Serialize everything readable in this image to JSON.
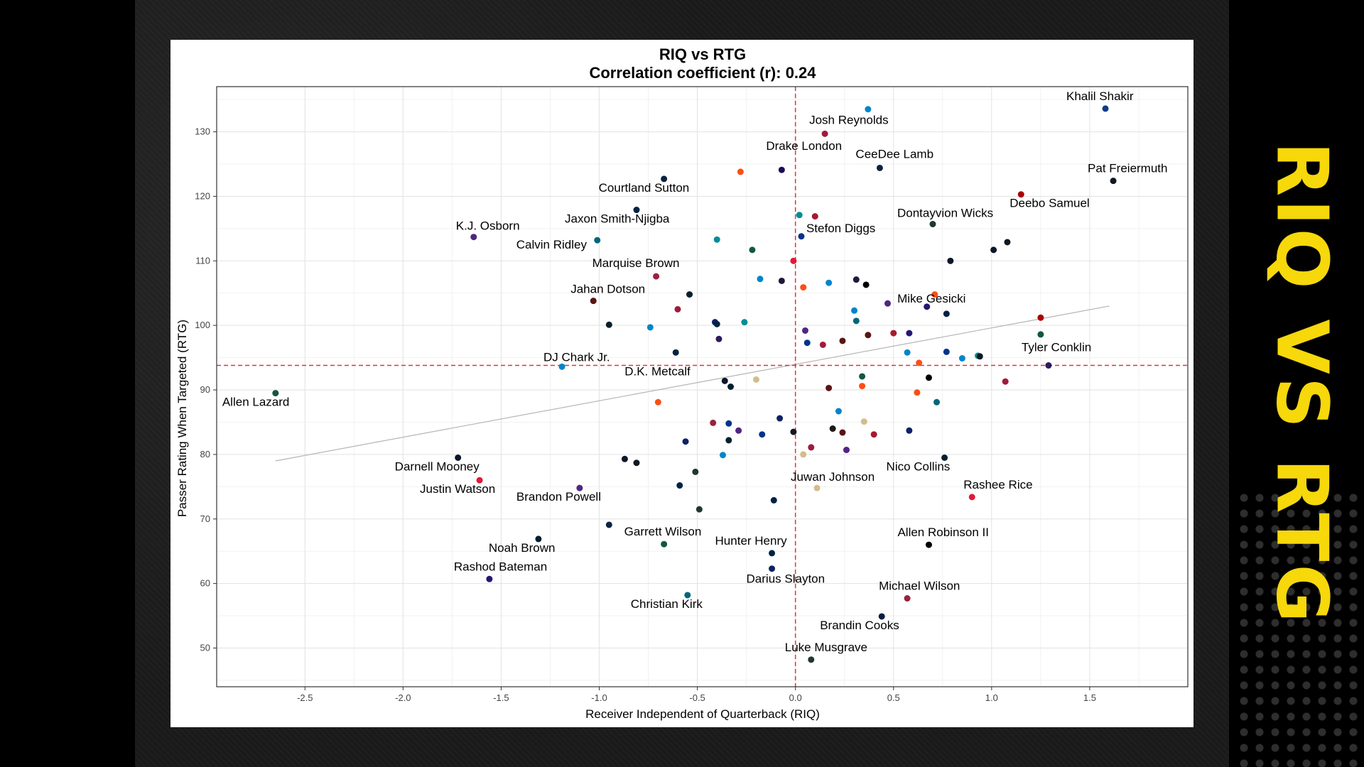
{
  "side_title": "RIQ VS RTG",
  "chart_data": {
    "type": "scatter",
    "title": "RIQ vs RTG",
    "subtitle": "Correlation coefficient (r): 0.24",
    "xlabel": "Receiver Independent of Quarterback (RIQ)",
    "ylabel": "Passer Rating When Targeted (RTG)",
    "xlim": [
      -2.95,
      2.0
    ],
    "ylim": [
      44,
      137
    ],
    "x_ticks": [
      -2.5,
      -2.0,
      -1.5,
      -1.0,
      -0.5,
      0.0,
      0.5,
      1.0,
      1.5
    ],
    "x_tick_labels": [
      "-2.5",
      "-2.0",
      "-1.5",
      "-1.0",
      "-0.5",
      "0.0",
      "0.5",
      "1.0",
      "1.5"
    ],
    "y_ticks": [
      50,
      60,
      70,
      80,
      90,
      100,
      110,
      120,
      130
    ],
    "y_tick_labels": [
      "50",
      "60",
      "70",
      "80",
      "90",
      "100",
      "110",
      "120",
      "130"
    ],
    "grid": true,
    "reference_lines": {
      "x": 0.0,
      "y": 93.8,
      "color": "#e8303a"
    },
    "trend_line": {
      "x": [
        -2.65,
        1.6
      ],
      "y": [
        79.0,
        103.0
      ],
      "color": "#b5b5b5"
    },
    "labeled_points": [
      {
        "label": "Khalil Shakir",
        "x": 1.58,
        "y": 133.6,
        "color": "#0b3a8a"
      },
      {
        "label": "Josh Reynolds",
        "x": 0.15,
        "y": 129.7,
        "color": "#a01a3c"
      },
      {
        "label": "Drake London",
        "x": -0.07,
        "y": 124.1,
        "color": "#1a0b5c"
      },
      {
        "label": "CeeDee Lamb",
        "x": 0.43,
        "y": 124.4,
        "color": "#0c2340"
      },
      {
        "label": "Pat Freiermuth",
        "x": 1.62,
        "y": 122.4,
        "color": "#101820"
      },
      {
        "label": "Courtland Sutton",
        "x": -0.67,
        "y": 122.7,
        "color": "#0a2343"
      },
      {
        "label": "Deebo Samuel",
        "x": 1.15,
        "y": 120.3,
        "color": "#aa0000"
      },
      {
        "label": "Jaxon Smith-Njigba",
        "x": -0.81,
        "y": 117.9,
        "color": "#002244"
      },
      {
        "label": "Dontayvion Wicks",
        "x": 0.7,
        "y": 115.7,
        "color": "#203731"
      },
      {
        "label": "K.J. Osborn",
        "x": -1.64,
        "y": 113.7,
        "color": "#4f2683"
      },
      {
        "label": "Stefon Diggs",
        "x": 0.03,
        "y": 113.8,
        "color": "#00338d"
      },
      {
        "label": "Calvin Ridley",
        "x": -1.01,
        "y": 113.2,
        "color": "#006778"
      },
      {
        "label": "Marquise Brown",
        "x": -0.71,
        "y": 107.6,
        "color": "#97233f"
      },
      {
        "label": "Mike Gesicki",
        "x": 0.36,
        "y": 106.3,
        "color": "#000000"
      },
      {
        "label": "Jahan Dotson",
        "x": -1.03,
        "y": 103.8,
        "color": "#5a1414"
      },
      {
        "label": "Tyler Conklin",
        "x": 1.29,
        "y": 93.8,
        "color": "#2e1a5c"
      },
      {
        "label": "DJ Chark Jr.",
        "x": -1.19,
        "y": 93.6,
        "color": "#0085ca"
      },
      {
        "label": "D.K. Metcalf",
        "x": -0.61,
        "y": 95.8,
        "color": "#002244"
      },
      {
        "label": "Allen Lazard",
        "x": -2.65,
        "y": 89.5,
        "color": "#125740"
      },
      {
        "label": "Darnell Mooney",
        "x": -1.72,
        "y": 79.5,
        "color": "#0b162a"
      },
      {
        "label": "Justin Watson",
        "x": -1.61,
        "y": 76.0,
        "color": "#e31837"
      },
      {
        "label": "Nico Collins",
        "x": 0.76,
        "y": 79.5,
        "color": "#03202f"
      },
      {
        "label": "Juwan Johnson",
        "x": 0.11,
        "y": 74.8,
        "color": "#d3bc8d"
      },
      {
        "label": "Rashee Rice",
        "x": 0.9,
        "y": 73.4,
        "color": "#e31837"
      },
      {
        "label": "Brandon Powell",
        "x": -1.1,
        "y": 74.8,
        "color": "#4f2683"
      },
      {
        "label": "Garrett Wilson",
        "x": -0.67,
        "y": 66.1,
        "color": "#125740"
      },
      {
        "label": "Noah Brown",
        "x": -1.31,
        "y": 66.9,
        "color": "#03202f"
      },
      {
        "label": "Hunter Henry",
        "x": -0.12,
        "y": 64.7,
        "color": "#002244"
      },
      {
        "label": "Allen Robinson II",
        "x": 0.68,
        "y": 66.0,
        "color": "#000000"
      },
      {
        "label": "Rashod Bateman",
        "x": -1.56,
        "y": 60.7,
        "color": "#241773"
      },
      {
        "label": "Darius Slayton",
        "x": -0.12,
        "y": 62.3,
        "color": "#0b2265"
      },
      {
        "label": "Michael Wilson",
        "x": 0.57,
        "y": 57.7,
        "color": "#97233f"
      },
      {
        "label": "Christian Kirk",
        "x": -0.55,
        "y": 58.2,
        "color": "#006778"
      },
      {
        "label": "Brandin Cooks",
        "x": 0.44,
        "y": 54.9,
        "color": "#041e42"
      },
      {
        "label": "Luke Musgrave",
        "x": 0.08,
        "y": 48.2,
        "color": "#203731"
      }
    ],
    "unlabeled_points": [
      {
        "x": 0.37,
        "y": 133.5,
        "color": "#0085ca"
      },
      {
        "x": -0.28,
        "y": 123.8,
        "color": "#fb4f14"
      },
      {
        "x": 0.02,
        "y": 117.1,
        "color": "#008e97"
      },
      {
        "x": 0.1,
        "y": 116.9,
        "color": "#a71930"
      },
      {
        "x": -0.4,
        "y": 113.3,
        "color": "#008e97"
      },
      {
        "x": -0.22,
        "y": 111.7,
        "color": "#125740"
      },
      {
        "x": 1.01,
        "y": 111.7,
        "color": "#0b162a"
      },
      {
        "x": 1.08,
        "y": 112.9,
        "color": "#101820"
      },
      {
        "x": 0.79,
        "y": 110.0,
        "color": "#0b162a"
      },
      {
        "x": -0.01,
        "y": 110.0,
        "color": "#e31837"
      },
      {
        "x": -0.18,
        "y": 107.2,
        "color": "#0085ca"
      },
      {
        "x": -0.07,
        "y": 106.9,
        "color": "#1a1a3a"
      },
      {
        "x": 0.17,
        "y": 106.6,
        "color": "#0085ca"
      },
      {
        "x": 0.31,
        "y": 107.1,
        "color": "#1a1a3a"
      },
      {
        "x": 0.04,
        "y": 105.9,
        "color": "#fb4f14"
      },
      {
        "x": -0.54,
        "y": 104.8,
        "color": "#03202f"
      },
      {
        "x": 0.71,
        "y": 104.8,
        "color": "#fb4f14"
      },
      {
        "x": 0.47,
        "y": 103.4,
        "color": "#4f2683"
      },
      {
        "x": 0.67,
        "y": 102.9,
        "color": "#241773"
      },
      {
        "x": -0.6,
        "y": 102.5,
        "color": "#a01a3c"
      },
      {
        "x": 0.3,
        "y": 102.3,
        "color": "#0085ca"
      },
      {
        "x": 0.77,
        "y": 101.8,
        "color": "#002244"
      },
      {
        "x": 1.25,
        "y": 101.2,
        "color": "#aa0000"
      },
      {
        "x": 0.31,
        "y": 100.7,
        "color": "#006778"
      },
      {
        "x": -0.41,
        "y": 100.5,
        "color": "#0b2265"
      },
      {
        "x": -0.26,
        "y": 100.5,
        "color": "#008e97"
      },
      {
        "x": -0.95,
        "y": 100.1,
        "color": "#03202f"
      },
      {
        "x": -0.4,
        "y": 100.2,
        "color": "#002244"
      },
      {
        "x": -0.74,
        "y": 99.7,
        "color": "#0085ca"
      },
      {
        "x": 0.05,
        "y": 99.2,
        "color": "#4f2683"
      },
      {
        "x": 0.5,
        "y": 98.8,
        "color": "#a71930"
      },
      {
        "x": 0.58,
        "y": 98.8,
        "color": "#241773"
      },
      {
        "x": 0.37,
        "y": 98.5,
        "color": "#5a1414"
      },
      {
        "x": 1.25,
        "y": 98.6,
        "color": "#125740"
      },
      {
        "x": -0.39,
        "y": 97.9,
        "color": "#2e1a5c"
      },
      {
        "x": 0.24,
        "y": 97.6,
        "color": "#5a1414"
      },
      {
        "x": 0.06,
        "y": 97.3,
        "color": "#00338d"
      },
      {
        "x": 0.14,
        "y": 97.0,
        "color": "#a01a3c"
      },
      {
        "x": 0.57,
        "y": 95.8,
        "color": "#0085ca"
      },
      {
        "x": 0.77,
        "y": 95.9,
        "color": "#00338d"
      },
      {
        "x": 0.93,
        "y": 95.3,
        "color": "#008e97"
      },
      {
        "x": 0.94,
        "y": 95.2,
        "color": "#101820"
      },
      {
        "x": 0.85,
        "y": 94.9,
        "color": "#0085ca"
      },
      {
        "x": 0.63,
        "y": 94.2,
        "color": "#fb4f14"
      },
      {
        "x": 1.07,
        "y": 91.3,
        "color": "#a01a3c"
      },
      {
        "x": -0.36,
        "y": 91.4,
        "color": "#0b162a"
      },
      {
        "x": -0.2,
        "y": 91.6,
        "color": "#d3bc8d"
      },
      {
        "x": 0.34,
        "y": 92.1,
        "color": "#125740"
      },
      {
        "x": 0.68,
        "y": 91.9,
        "color": "#000000"
      },
      {
        "x": -0.33,
        "y": 90.5,
        "color": "#03202f"
      },
      {
        "x": 0.34,
        "y": 90.6,
        "color": "#fb4f14"
      },
      {
        "x": 0.17,
        "y": 90.3,
        "color": "#5a1414"
      },
      {
        "x": 0.62,
        "y": 89.6,
        "color": "#fb4f14"
      },
      {
        "x": 0.72,
        "y": 88.1,
        "color": "#006778"
      },
      {
        "x": -0.7,
        "y": 88.1,
        "color": "#fb4f14"
      },
      {
        "x": 0.22,
        "y": 86.7,
        "color": "#0085ca"
      },
      {
        "x": -0.08,
        "y": 85.6,
        "color": "#0b2265"
      },
      {
        "x": 0.35,
        "y": 85.1,
        "color": "#d3bc8d"
      },
      {
        "x": -0.42,
        "y": 84.9,
        "color": "#97233f"
      },
      {
        "x": -0.34,
        "y": 84.8,
        "color": "#00338d"
      },
      {
        "x": -0.29,
        "y": 83.7,
        "color": "#4f2683"
      },
      {
        "x": 0.58,
        "y": 83.7,
        "color": "#0b2265"
      },
      {
        "x": 0.19,
        "y": 84.0,
        "color": "#1a1a1a"
      },
      {
        "x": -0.01,
        "y": 83.5,
        "color": "#101820"
      },
      {
        "x": -0.17,
        "y": 83.1,
        "color": "#00338d"
      },
      {
        "x": 0.24,
        "y": 83.4,
        "color": "#5a1414"
      },
      {
        "x": 0.4,
        "y": 83.1,
        "color": "#a71930"
      },
      {
        "x": -0.34,
        "y": 82.2,
        "color": "#03202f"
      },
      {
        "x": -0.56,
        "y": 82.0,
        "color": "#0b2265"
      },
      {
        "x": 0.08,
        "y": 81.1,
        "color": "#a01a3c"
      },
      {
        "x": 0.26,
        "y": 80.7,
        "color": "#4f2683"
      },
      {
        "x": 0.04,
        "y": 80.0,
        "color": "#d3bc8d"
      },
      {
        "x": -0.37,
        "y": 79.9,
        "color": "#0085ca"
      },
      {
        "x": -0.87,
        "y": 79.3,
        "color": "#0b162a"
      },
      {
        "x": -0.81,
        "y": 78.7,
        "color": "#101820"
      },
      {
        "x": -0.51,
        "y": 77.3,
        "color": "#203731"
      },
      {
        "x": -0.59,
        "y": 75.2,
        "color": "#002244"
      },
      {
        "x": -0.11,
        "y": 72.9,
        "color": "#002244"
      },
      {
        "x": -0.49,
        "y": 71.5,
        "color": "#203731"
      },
      {
        "x": -0.95,
        "y": 69.1,
        "color": "#0c2340"
      }
    ]
  }
}
